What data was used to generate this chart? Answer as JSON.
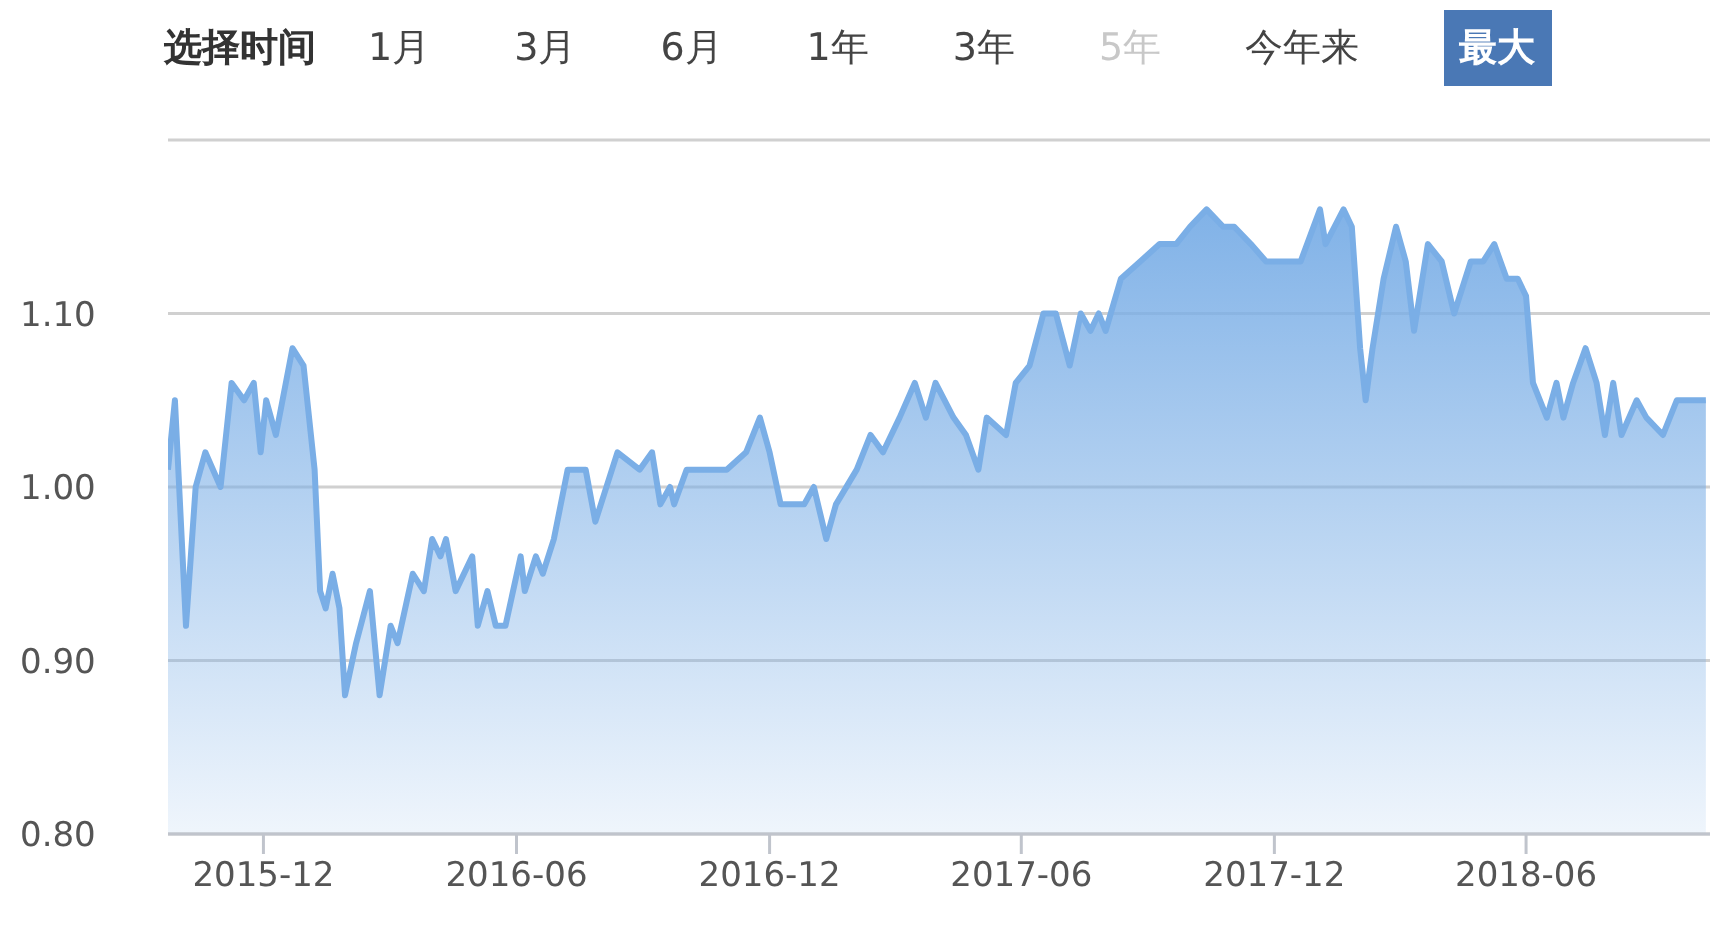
{
  "chart_data": {
    "type": "area",
    "annotations": [
      "选择时间",
      "1月",
      "3月",
      "6月",
      "1年",
      "3年",
      "5年",
      "今年来",
      "最大"
    ],
    "x": [
      "2015-09-23",
      "2015-09-28",
      "2015-10-06",
      "2015-10-13",
      "2015-10-20",
      "2015-10-31",
      "2015-11-08",
      "2015-11-17",
      "2015-11-24",
      "2015-11-29",
      "2015-12-03",
      "2015-12-10",
      "2015-12-22",
      "2015-12-30",
      "2016-01-07",
      "2016-01-11",
      "2016-01-15",
      "2016-01-20",
      "2016-01-25",
      "2016-01-29",
      "2016-02-06",
      "2016-02-16",
      "2016-02-23",
      "2016-03-02",
      "2016-03-07",
      "2016-03-18",
      "2016-03-26",
      "2016-04-01",
      "2016-04-07",
      "2016-04-11",
      "2016-04-18",
      "2016-04-30",
      "2016-05-04",
      "2016-05-11",
      "2016-05-17",
      "2016-05-24",
      "2016-06-04",
      "2016-06-07",
      "2016-06-15",
      "2016-06-20",
      "2016-06-28",
      "2016-07-08",
      "2016-07-17",
      "2016-07-21",
      "2016-07-28",
      "2016-08-13",
      "2016-08-29",
      "2016-09-07",
      "2016-09-13",
      "2016-09-20",
      "2016-09-23",
      "2016-10-02",
      "2016-10-16",
      "2016-10-26",
      "2016-10-31",
      "2016-11-14",
      "2016-11-24",
      "2016-12-01",
      "2016-12-09",
      "2016-12-18",
      "2016-12-26",
      "2017-01-02",
      "2017-01-11",
      "2017-01-18",
      "2017-02-02",
      "2017-02-12",
      "2017-02-21",
      "2017-03-05",
      "2017-03-16",
      "2017-03-24",
      "2017-03-31",
      "2017-04-13",
      "2017-04-22",
      "2017-05-01",
      "2017-05-07",
      "2017-05-21",
      "2017-05-28",
      "2017-06-07",
      "2017-06-17",
      "2017-06-26",
      "2017-07-06",
      "2017-07-14",
      "2017-07-21",
      "2017-07-27",
      "2017-08-01",
      "2017-08-12",
      "2017-08-26",
      "2017-09-09",
      "2017-09-21",
      "2017-10-01",
      "2017-10-13",
      "2017-10-25",
      "2017-11-02",
      "2017-11-14",
      "2017-11-25",
      "2017-11-30",
      "2017-12-20",
      "2018-01-03",
      "2018-01-07",
      "2018-01-20",
      "2018-01-26",
      "2018-02-01",
      "2018-02-05",
      "2018-02-10",
      "2018-02-18",
      "2018-02-27",
      "2018-03-06",
      "2018-03-12",
      "2018-03-22",
      "2018-04-01",
      "2018-04-10",
      "2018-04-22",
      "2018-05-01",
      "2018-05-09",
      "2018-05-18",
      "2018-05-26",
      "2018-06-01",
      "2018-06-06",
      "2018-06-16",
      "2018-06-23",
      "2018-06-28",
      "2018-07-05",
      "2018-07-14",
      "2018-07-22",
      "2018-07-28",
      "2018-08-03",
      "2018-08-09",
      "2018-08-20",
      "2018-08-27",
      "2018-09-08",
      "2018-09-18",
      "2018-10-09"
    ],
    "series": [
      {
        "color": "#7aaee6",
        "values": [
          1.01,
          1.05,
          0.92,
          1.0,
          1.02,
          1.0,
          1.06,
          1.05,
          1.06,
          1.02,
          1.05,
          1.03,
          1.08,
          1.07,
          1.01,
          0.94,
          0.93,
          0.95,
          0.93,
          0.88,
          0.91,
          0.94,
          0.88,
          0.92,
          0.91,
          0.95,
          0.94,
          0.97,
          0.96,
          0.97,
          0.94,
          0.96,
          0.92,
          0.94,
          0.92,
          0.92,
          0.96,
          0.94,
          0.96,
          0.95,
          0.97,
          1.01,
          1.01,
          1.01,
          0.98,
          1.02,
          1.01,
          1.02,
          0.99,
          1.0,
          0.99,
          1.01,
          1.01,
          1.01,
          1.01,
          1.02,
          1.04,
          1.02,
          0.99,
          0.99,
          0.99,
          1.0,
          0.97,
          0.99,
          1.01,
          1.03,
          1.02,
          1.04,
          1.06,
          1.04,
          1.06,
          1.04,
          1.03,
          1.01,
          1.04,
          1.03,
          1.06,
          1.07,
          1.1,
          1.1,
          1.07,
          1.1,
          1.09,
          1.1,
          1.09,
          1.12,
          1.13,
          1.14,
          1.14,
          1.15,
          1.16,
          1.15,
          1.15,
          1.14,
          1.13,
          1.13,
          1.13,
          1.16,
          1.14,
          1.16,
          1.15,
          1.08,
          1.05,
          1.08,
          1.12,
          1.15,
          1.13,
          1.09,
          1.14,
          1.13,
          1.1,
          1.13,
          1.13,
          1.14,
          1.12,
          1.12,
          1.11,
          1.06,
          1.04,
          1.06,
          1.04,
          1.06,
          1.08,
          1.06,
          1.03,
          1.06,
          1.03,
          1.05,
          1.04,
          1.03,
          1.05,
          1.05
        ]
      }
    ],
    "xlim": [
      "2015-09-23",
      "2018-10-12"
    ],
    "xticks": [
      "2015-12",
      "2016-06",
      "2016-12",
      "2017-06",
      "2017-12",
      "2018-06"
    ],
    "ylim": [
      0.8,
      1.2
    ],
    "yticks": [
      {
        "value": 0.8,
        "label": "0.80"
      },
      {
        "value": 0.9,
        "label": "0.90"
      },
      {
        "value": 1.0,
        "label": "1.00"
      },
      {
        "value": 1.1,
        "label": "1.10"
      },
      {
        "value": 1.2,
        "label": null
      }
    ],
    "grid": "y",
    "legend": false,
    "marker": "none",
    "line_style": "solid"
  }
}
